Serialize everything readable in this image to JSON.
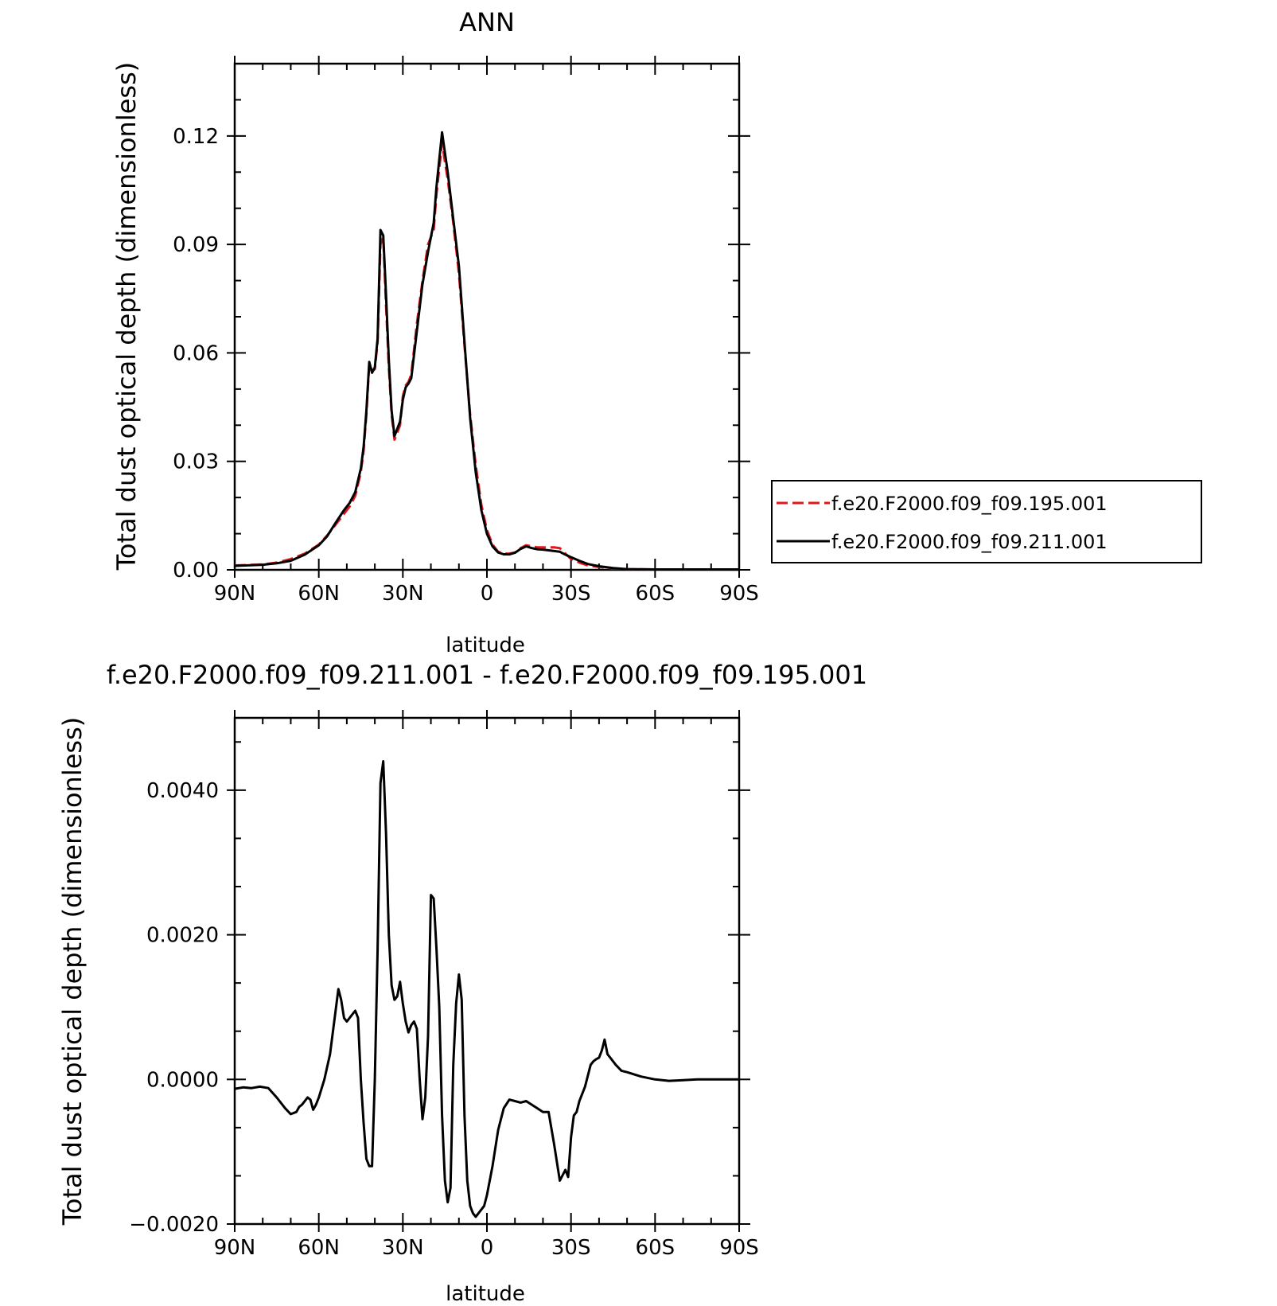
{
  "chart_data": [
    {
      "type": "line",
      "title": "ANN",
      "xlabel": "latitude",
      "ylabel": "Total dust optical depth (dimensionless)",
      "x_ticks": [
        "90N",
        "60N",
        "30N",
        "0",
        "30S",
        "60S",
        "90S"
      ],
      "x_tick_values": [
        90,
        60,
        30,
        0,
        -30,
        -60,
        -90
      ],
      "y_ticks": [
        "0.00",
        "0.03",
        "0.06",
        "0.09",
        "0.12"
      ],
      "y_tick_values": [
        0,
        0.03,
        0.06,
        0.09,
        0.12
      ],
      "xlim": [
        90,
        -90
      ],
      "ylim": [
        0,
        0.14
      ],
      "legend_position": "right-middle",
      "series": [
        {
          "name": "f.e20.F2000.f09_f09.195.001",
          "color": "#e3161b",
          "style": "dashed",
          "x": [
            90,
            80,
            75,
            70,
            65,
            60,
            57,
            54,
            51,
            49,
            47,
            45,
            44,
            43,
            42,
            41,
            40,
            39,
            38,
            37,
            36,
            35,
            34,
            33,
            32,
            31,
            30,
            29,
            28,
            27,
            25,
            23,
            21,
            19,
            18,
            16,
            14,
            12,
            10,
            8,
            6,
            4,
            2,
            0,
            -2,
            -4,
            -6,
            -8,
            -10,
            -12,
            -14,
            -16,
            -18,
            -20,
            -22,
            -24,
            -26,
            -28,
            -30,
            -33,
            -36,
            -40,
            -45,
            -50,
            -60,
            -70,
            -80,
            -90
          ],
          "y": [
            0.0012,
            0.0015,
            0.002,
            0.003,
            0.0045,
            0.007,
            0.0095,
            0.0125,
            0.0155,
            0.0175,
            0.0205,
            0.027,
            0.033,
            0.043,
            0.057,
            0.055,
            0.0555,
            0.063,
            0.09,
            0.092,
            0.073,
            0.056,
            0.043,
            0.036,
            0.038,
            0.04,
            0.048,
            0.051,
            0.052,
            0.054,
            0.068,
            0.08,
            0.09,
            0.094,
            0.104,
            0.118,
            0.108,
            0.096,
            0.082,
            0.062,
            0.043,
            0.029,
            0.018,
            0.011,
            0.007,
            0.005,
            0.0045,
            0.0045,
            0.0048,
            0.006,
            0.0068,
            0.0065,
            0.0062,
            0.0062,
            0.0062,
            0.0062,
            0.006,
            0.0045,
            0.003,
            0.002,
            0.0012,
            0.0008,
            0.0004,
            0.0002,
            0.0001,
            0.0001,
            0.0001,
            0.0001
          ]
        },
        {
          "name": "f.e20.F2000.f09_f09.211.001",
          "color": "#000000",
          "style": "solid",
          "x": [
            90,
            80,
            75,
            70,
            65,
            60,
            57,
            54,
            51,
            49,
            47,
            45,
            44,
            43,
            42,
            41,
            40,
            39,
            38,
            37,
            36,
            35,
            34,
            33,
            32,
            31,
            30,
            29,
            28,
            27,
            25,
            23,
            21,
            19,
            18,
            16,
            14,
            12,
            10,
            8,
            6,
            4,
            2,
            0,
            -2,
            -4,
            -6,
            -8,
            -10,
            -12,
            -14,
            -16,
            -18,
            -20,
            -22,
            -24,
            -26,
            -28,
            -30,
            -33,
            -36,
            -40,
            -45,
            -50,
            -60,
            -70,
            -80,
            -90
          ],
          "y": [
            0.0011,
            0.0014,
            0.0018,
            0.0025,
            0.0042,
            0.0068,
            0.0093,
            0.013,
            0.0165,
            0.0185,
            0.0215,
            0.028,
            0.034,
            0.044,
            0.0575,
            0.0545,
            0.056,
            0.064,
            0.094,
            0.0925,
            0.076,
            0.058,
            0.044,
            0.037,
            0.039,
            0.041,
            0.047,
            0.0505,
            0.0515,
            0.053,
            0.066,
            0.079,
            0.088,
            0.096,
            0.106,
            0.121,
            0.11,
            0.097,
            0.084,
            0.063,
            0.042,
            0.027,
            0.0165,
            0.01,
            0.0065,
            0.0048,
            0.0043,
            0.0043,
            0.0047,
            0.0058,
            0.0065,
            0.006,
            0.0057,
            0.0056,
            0.0054,
            0.0052,
            0.005,
            0.0042,
            0.0035,
            0.0025,
            0.0016,
            0.001,
            0.0005,
            0.0002,
            0.0001,
            0.0001,
            0.0001,
            0.0001
          ]
        }
      ]
    },
    {
      "type": "line",
      "title": "f.e20.F2000.f09_f09.211.001 - f.e20.F2000.f09_f09.195.001",
      "xlabel": "latitude",
      "ylabel": "Total dust optical depth (dimensionless)",
      "x_ticks": [
        "90N",
        "60N",
        "30N",
        "0",
        "30S",
        "60S",
        "90S"
      ],
      "x_tick_values": [
        90,
        60,
        30,
        0,
        -30,
        -60,
        -90
      ],
      "y_ticks": [
        "-0.0020",
        "0.0000",
        "0.0020",
        "0.0040"
      ],
      "y_tick_values": [
        -0.002,
        0,
        0.002,
        0.004
      ],
      "xlim": [
        90,
        -90
      ],
      "ylim": [
        -0.002,
        0.005
      ],
      "series": [
        {
          "color": "#000000",
          "style": "solid",
          "x": [
            90,
            87,
            84,
            81,
            78,
            75,
            72,
            70,
            68,
            67,
            66,
            65,
            64,
            63,
            62,
            61,
            60,
            58,
            56,
            54,
            53,
            52,
            51,
            50,
            48,
            47,
            46,
            45,
            44,
            43,
            42,
            41,
            40,
            39,
            38,
            37,
            36,
            35,
            34,
            33,
            32,
            31,
            30,
            29,
            28,
            27,
            26,
            25,
            24,
            23,
            22,
            21,
            20,
            19,
            18,
            17,
            16,
            15,
            14,
            13,
            12,
            11,
            10,
            9,
            8,
            7,
            6,
            5,
            4,
            3,
            2,
            1,
            0,
            -2,
            -4,
            -6,
            -8,
            -10,
            -12,
            -14,
            -16,
            -18,
            -20,
            -22,
            -24,
            -26,
            -28,
            -29,
            -30,
            -31,
            -32,
            -33,
            -35,
            -37,
            -38,
            -39,
            -40,
            -41,
            -42,
            -43,
            -44,
            -46,
            -48,
            -50,
            -55,
            -60,
            -65,
            -70,
            -75,
            -80,
            -85,
            -90
          ],
          "y": [
            -0.00013,
            -0.00011,
            -0.00012,
            -0.0001,
            -0.00012,
            -0.00025,
            -0.0004,
            -0.00048,
            -0.00045,
            -0.00038,
            -0.00035,
            -0.0003,
            -0.00025,
            -0.00028,
            -0.00042,
            -0.00035,
            -0.00025,
            0.0,
            0.00035,
            0.00095,
            0.00125,
            0.0011,
            0.00085,
            0.0008,
            0.0009,
            0.00095,
            0.00085,
            0.0,
            -0.0006,
            -0.0011,
            -0.0012,
            -0.0012,
            0.0,
            0.0018,
            0.0041,
            0.0044,
            0.0034,
            0.002,
            0.0013,
            0.0011,
            0.00115,
            0.00135,
            0.00105,
            0.0008,
            0.00065,
            0.00075,
            0.0008,
            0.0007,
            0.0,
            -0.00055,
            -0.00025,
            0.0006,
            0.00255,
            0.0025,
            0.0018,
            0.001,
            -0.0005,
            -0.0014,
            -0.0017,
            -0.0015,
            0.0002,
            0.00105,
            0.00145,
            0.0011,
            -0.0005,
            -0.0014,
            -0.00175,
            -0.00185,
            -0.0019,
            -0.00185,
            -0.0018,
            -0.00175,
            -0.0016,
            -0.0012,
            -0.0007,
            -0.0004,
            -0.00028,
            -0.0003,
            -0.00032,
            -0.0003,
            -0.00035,
            -0.0004,
            -0.00045,
            -0.00045,
            -0.0009,
            -0.0014,
            -0.00125,
            -0.00135,
            -0.0008,
            -0.0005,
            -0.00045,
            -0.0003,
            -0.0001,
            0.0002,
            0.00025,
            0.00028,
            0.0003,
            0.0004,
            0.00055,
            0.00035,
            0.0003,
            0.0002,
            0.00012,
            0.0001,
            4e-05,
            0.0,
            -2e-05,
            -1e-05,
            0.0,
            0.0,
            0.0,
            0.0
          ]
        }
      ]
    }
  ]
}
